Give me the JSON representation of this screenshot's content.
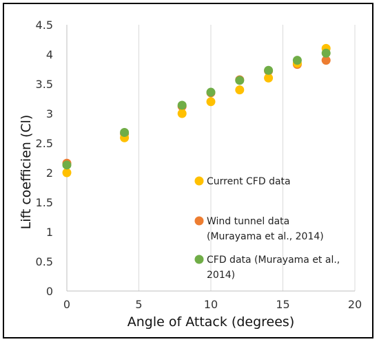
{
  "chart_data": {
    "type": "scatter",
    "title": "",
    "xlabel": "Angle of Attack (degrees)",
    "ylabel": "Lift coefficien (Cl)",
    "xlim": [
      0,
      20
    ],
    "ylim": [
      0,
      4.5
    ],
    "xticks": [
      "0",
      "5",
      "10",
      "15",
      "20"
    ],
    "yticks": [
      "0",
      "0.5",
      "1",
      "1.5",
      "2",
      "2.5",
      "3",
      "3.5",
      "4",
      "4.5"
    ],
    "grid": "vertical",
    "legend_position": "right",
    "series": [
      {
        "name": "Wind tunnel data (Murayama et al., 2014)",
        "legend_lines": [
          "Wind tunnel data",
          "(Murayama et al., 2014)"
        ],
        "color": "#ED7D31",
        "x": [
          0,
          4,
          8,
          10,
          12,
          14,
          16,
          18
        ],
        "y": [
          2.16,
          2.66,
          3.12,
          3.35,
          3.57,
          3.72,
          3.83,
          3.9
        ]
      },
      {
        "name": "Current CFD data",
        "legend_lines": [
          "Current CFD data"
        ],
        "color": "#FFC000",
        "x": [
          0,
          4,
          8,
          10,
          12,
          14,
          16,
          18
        ],
        "y": [
          2.0,
          2.59,
          3.0,
          3.2,
          3.4,
          3.6,
          3.85,
          4.1
        ]
      },
      {
        "name": "CFD data (Murayama et al., 2014)",
        "legend_lines": [
          "CFD data (Murayama et al.,",
          "2014)"
        ],
        "color": "#70AD47",
        "x": [
          0,
          4,
          8,
          10,
          12,
          14,
          16,
          18
        ],
        "y": [
          2.13,
          2.68,
          3.14,
          3.36,
          3.56,
          3.73,
          3.9,
          4.02
        ]
      }
    ],
    "legend_order": [
      1,
      0,
      2
    ]
  }
}
